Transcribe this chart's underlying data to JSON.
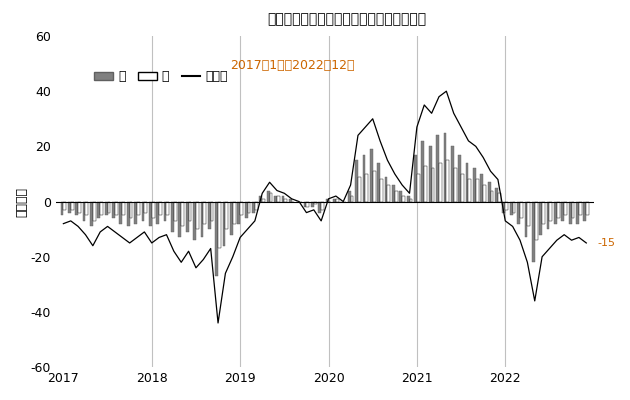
{
  "title": "完全失業者数（原数値・対前年同月増減）",
  "subtitle": "2017年1月～2022年12月",
  "ylabel": "（万人）",
  "annotation": "-15",
  "annotation_color": "#CC6600",
  "ylim": [
    -60,
    60
  ],
  "yticks": [
    -60,
    -40,
    -20,
    0,
    20,
    40,
    60
  ],
  "background_color": "#ffffff",
  "year_line_color": "#c0c0c0",
  "year_vlines": [
    2018,
    2019,
    2020,
    2021,
    2022
  ],
  "legend_items": [
    "男",
    "女",
    "男女計"
  ],
  "male_color": "#808080",
  "female_color": "#ffffff",
  "female_edgecolor": "#000000",
  "line_color": "#000000",
  "subtitle_color": "#CC6600",
  "male": [
    -5,
    -4,
    -5,
    -7,
    -9,
    -6,
    -5,
    -6,
    -8,
    -9,
    -8,
    -7,
    -9,
    -8,
    -7,
    -11,
    -13,
    -11,
    -14,
    -13,
    -10,
    -27,
    -16,
    -12,
    -8,
    -6,
    -4,
    2,
    4,
    2,
    2,
    1,
    0,
    -2,
    -2,
    -4,
    1,
    1,
    0,
    4,
    15,
    17,
    19,
    14,
    9,
    6,
    4,
    2,
    17,
    22,
    20,
    24,
    25,
    20,
    17,
    14,
    12,
    10,
    7,
    5,
    -4,
    -5,
    -8,
    -13,
    -22,
    -12,
    -10,
    -8,
    -7,
    -8,
    -8,
    -7
  ],
  "female": [
    -3,
    -3,
    -4,
    -5,
    -7,
    -5,
    -4,
    -5,
    -5,
    -6,
    -5,
    -4,
    -6,
    -5,
    -5,
    -7,
    -9,
    -7,
    -10,
    -8,
    -7,
    -17,
    -10,
    -8,
    -5,
    -4,
    -3,
    1,
    3,
    2,
    1,
    0,
    0,
    -2,
    -1,
    -3,
    0,
    1,
    0,
    2,
    9,
    10,
    11,
    8,
    6,
    4,
    2,
    1,
    10,
    13,
    12,
    14,
    15,
    12,
    10,
    8,
    8,
    6,
    4,
    3,
    -3,
    -4,
    -6,
    -9,
    -14,
    -8,
    -7,
    -6,
    -5,
    -6,
    -5,
    -5
  ],
  "total": [
    -8,
    -7,
    -9,
    -12,
    -16,
    -11,
    -9,
    -11,
    -13,
    -15,
    -13,
    -11,
    -15,
    -13,
    -12,
    -18,
    -22,
    -18,
    -24,
    -21,
    -17,
    -44,
    -26,
    -20,
    -13,
    -10,
    -7,
    3,
    7,
    4,
    3,
    1,
    0,
    -4,
    -3,
    -7,
    1,
    2,
    0,
    6,
    24,
    27,
    30,
    22,
    15,
    10,
    6,
    3,
    27,
    35,
    32,
    38,
    40,
    32,
    27,
    22,
    20,
    16,
    11,
    8,
    -7,
    -9,
    -14,
    -22,
    -36,
    -20,
    -17,
    -14,
    -12,
    -14,
    -13,
    -15
  ]
}
